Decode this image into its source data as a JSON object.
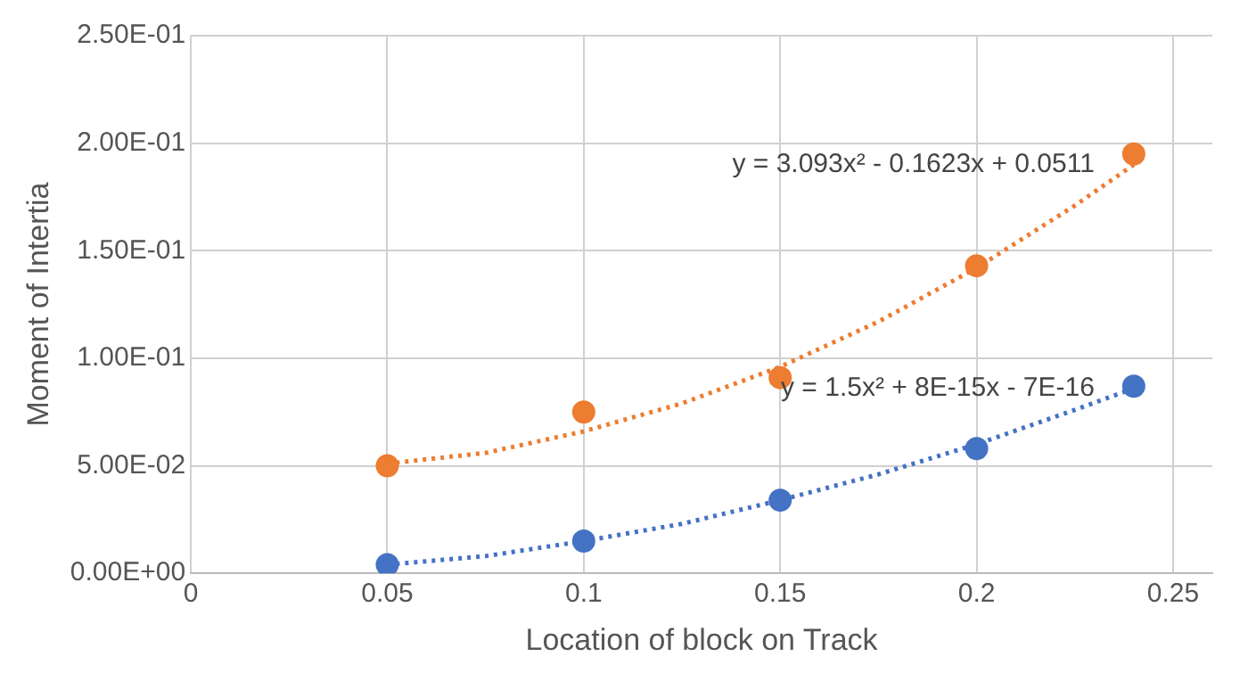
{
  "chart_data": {
    "type": "scatter",
    "xlabel": "Location of block on Track",
    "ylabel": "Moment of Intertia",
    "xlim": [
      0,
      0.26
    ],
    "xticks": [
      0,
      0.05,
      0.1,
      0.15,
      0.2,
      0.25
    ],
    "ylim": [
      0,
      0.25
    ],
    "yticks": [
      {
        "value": 0,
        "label": "0.00E+00"
      },
      {
        "value": 0.05,
        "label": "5.00E-02"
      },
      {
        "value": 0.1,
        "label": "1.00E-01"
      },
      {
        "value": 0.15,
        "label": "1.50E-01"
      },
      {
        "value": 0.2,
        "label": "2.00E-01"
      },
      {
        "value": 0.25,
        "label": "2.50E-01"
      }
    ],
    "grid": true,
    "marker": "circle",
    "series": [
      {
        "type": "line",
        "color": "#ed7d31",
        "line_style": "dotted",
        "marker": "none",
        "x": [
          0.05,
          0.075,
          0.1,
          0.125,
          0.15,
          0.175,
          0.2,
          0.225,
          0.24
        ],
        "values": [
          0.051,
          0.056,
          0.066,
          0.079,
          0.096,
          0.117,
          0.142,
          0.171,
          0.19
        ]
      },
      {
        "type": "line",
        "color": "#4472c4",
        "line_style": "dotted",
        "marker": "none",
        "x": [
          0.05,
          0.075,
          0.1,
          0.125,
          0.15,
          0.175,
          0.2,
          0.225,
          0.24
        ],
        "values": [
          0.004,
          0.008,
          0.015,
          0.023,
          0.034,
          0.046,
          0.06,
          0.076,
          0.086
        ]
      },
      {
        "type": "scatter",
        "color": "#ed7d31",
        "x": [
          0.05,
          0.1,
          0.15,
          0.2,
          0.24
        ],
        "values": [
          0.05,
          0.075,
          0.091,
          0.143,
          0.195
        ]
      },
      {
        "type": "scatter",
        "color": "#4472c4",
        "x": [
          0.05,
          0.1,
          0.15,
          0.2,
          0.24
        ],
        "values": [
          0.004,
          0.015,
          0.034,
          0.058,
          0.087
        ]
      }
    ],
    "annotations": [
      "y = 3.093x² - 0.1623x + 0.0511",
      "y = 1.5x² + 8E-15x - 7E-16"
    ]
  }
}
